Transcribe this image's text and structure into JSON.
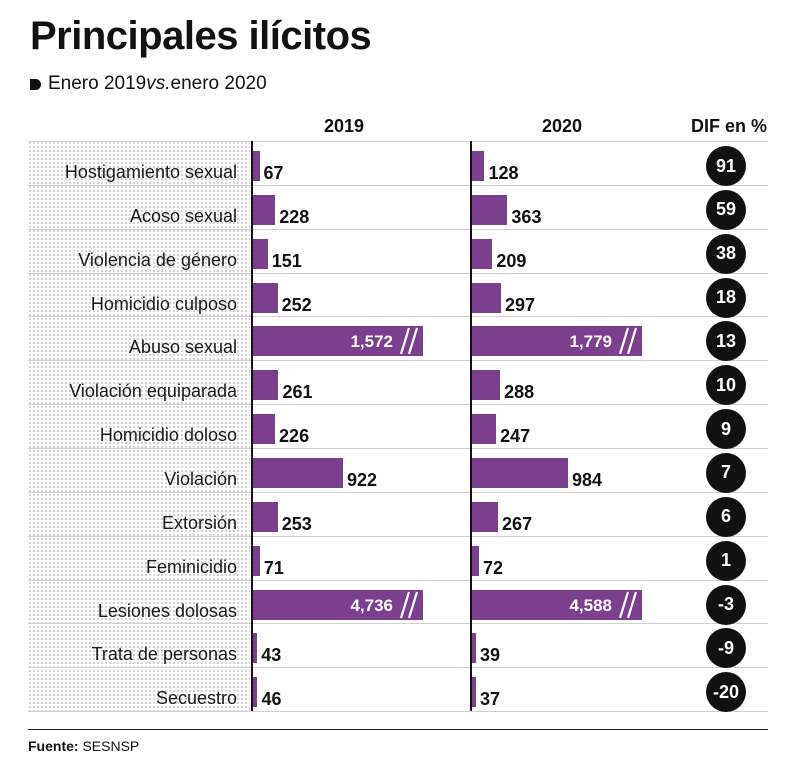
{
  "title": "Principales ilícitos",
  "subtitle": {
    "prefix": "Enero 2019 ",
    "vs": "vs.",
    "suffix": " enero 2020"
  },
  "headers": {
    "col2019": "2019",
    "col2020": "2020",
    "dif": "DIF en %"
  },
  "source": {
    "label": "Fuente:",
    "text": "SESNSP"
  },
  "colors": {
    "bar": "#7b3f8e",
    "circle": "#111111"
  },
  "chart_data": {
    "type": "bar",
    "title": "Principales ilícitos",
    "subtitle": "Enero 2019 vs. enero 2020",
    "categories": [
      "Hostigamiento sexual",
      "Acoso sexual",
      "Violencia de género",
      "Homicidio culposo",
      "Abuso sexual",
      "Violación equiparada",
      "Homicidio doloso",
      "Violación",
      "Extorsión",
      "Feminicidio",
      "Lesiones dolosas",
      "Trata de personas",
      "Secuestro"
    ],
    "series": [
      {
        "name": "2019",
        "values": [
          67,
          228,
          151,
          252,
          1572,
          261,
          226,
          922,
          253,
          71,
          4736,
          43,
          46
        ],
        "labels": [
          "67",
          "228",
          "151",
          "252",
          "1,572",
          "261",
          "226",
          "922",
          "253",
          "71",
          "4,736",
          "43",
          "46"
        ]
      },
      {
        "name": "2020",
        "values": [
          128,
          363,
          209,
          297,
          1779,
          288,
          247,
          984,
          267,
          72,
          4588,
          39,
          37
        ],
        "labels": [
          "128",
          "363",
          "209",
          "297",
          "1,779",
          "288",
          "247",
          "984",
          "267",
          "72",
          "4,588",
          "39",
          "37"
        ]
      }
    ],
    "dif_percent": [
      91,
      59,
      38,
      18,
      13,
      10,
      9,
      7,
      6,
      1,
      -3,
      -9,
      -20
    ],
    "axis_break": "bars for Abuso sexual and Lesiones dolosas are truncated (broken axis)",
    "xlabel": "",
    "ylabel": ""
  }
}
